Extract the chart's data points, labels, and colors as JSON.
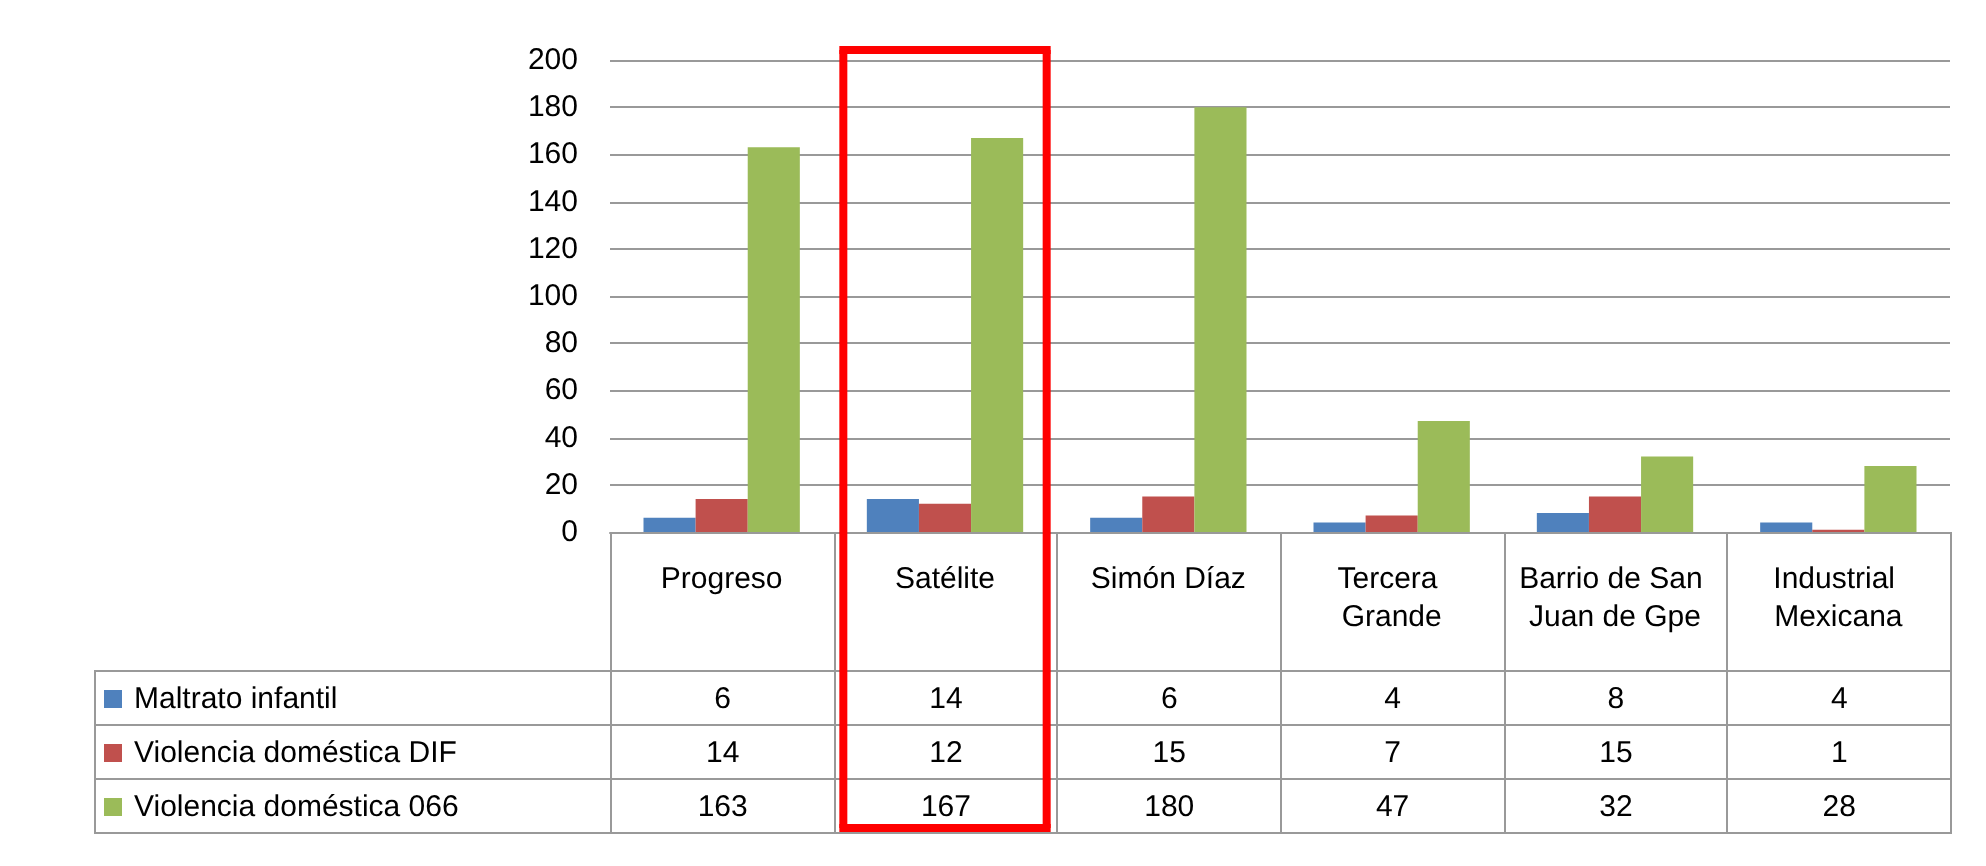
{
  "chart_data": {
    "type": "bar",
    "categories": [
      "Progreso",
      "Satélite",
      "Simón Díaz",
      "Tercera Grande",
      "Barrio de San Juan de Gpe",
      "Industrial Mexicana"
    ],
    "series": [
      {
        "name": "Maltrato infantil",
        "color": "#4f81bd",
        "values": [
          6,
          14,
          6,
          4,
          8,
          4
        ]
      },
      {
        "name": "Violencia doméstica DIF",
        "color": "#c0504d",
        "values": [
          14,
          12,
          15,
          7,
          15,
          1
        ]
      },
      {
        "name": "Violencia doméstica 066",
        "color": "#9bbb59",
        "values": [
          163,
          167,
          180,
          47,
          32,
          28
        ]
      }
    ],
    "ylim": [
      0,
      200
    ],
    "yticks": [
      0,
      20,
      40,
      60,
      80,
      100,
      120,
      140,
      160,
      180,
      200
    ],
    "grid": "y",
    "legend": "bottom",
    "data_labels": true
  }
}
